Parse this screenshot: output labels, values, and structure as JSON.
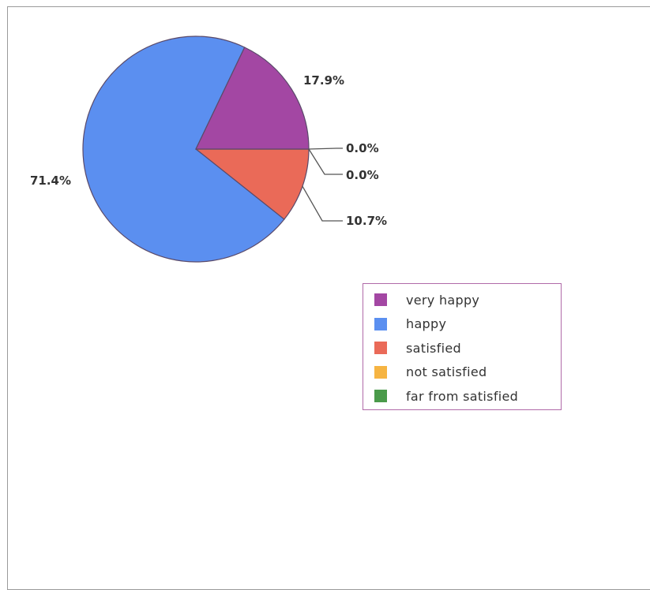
{
  "chart_data": {
    "type": "pie",
    "categories": [
      "very happy",
      "happy",
      "satisfied",
      "not satisfied",
      "far from satisfied"
    ],
    "values": [
      17.9,
      71.4,
      10.7,
      0.0,
      0.0
    ],
    "value_labels": [
      "17.9%",
      "71.4%",
      "10.7%",
      "0.0%",
      "0.0%"
    ],
    "colors": [
      "#a347a3",
      "#5b8ff0",
      "#ea6a58",
      "#f6b442",
      "#4a9a4a"
    ],
    "legend_position": "right",
    "title": ""
  }
}
